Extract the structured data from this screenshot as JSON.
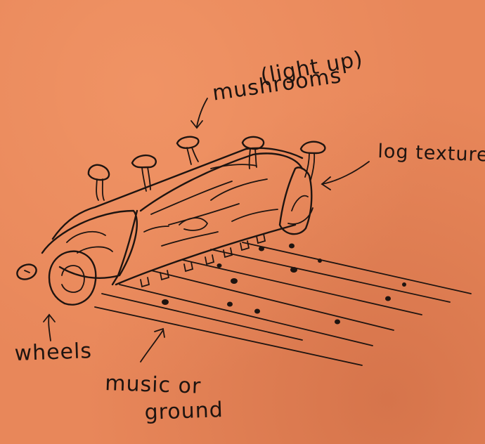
{
  "labels": {
    "mushrooms": "mushrooms",
    "light_up": "(light up)",
    "log_texture": "log texture",
    "wheels": "wheels",
    "music_or": "music or",
    "ground": "ground"
  },
  "colors": {
    "paper": "#e8875a",
    "ink": "#1e1410"
  }
}
